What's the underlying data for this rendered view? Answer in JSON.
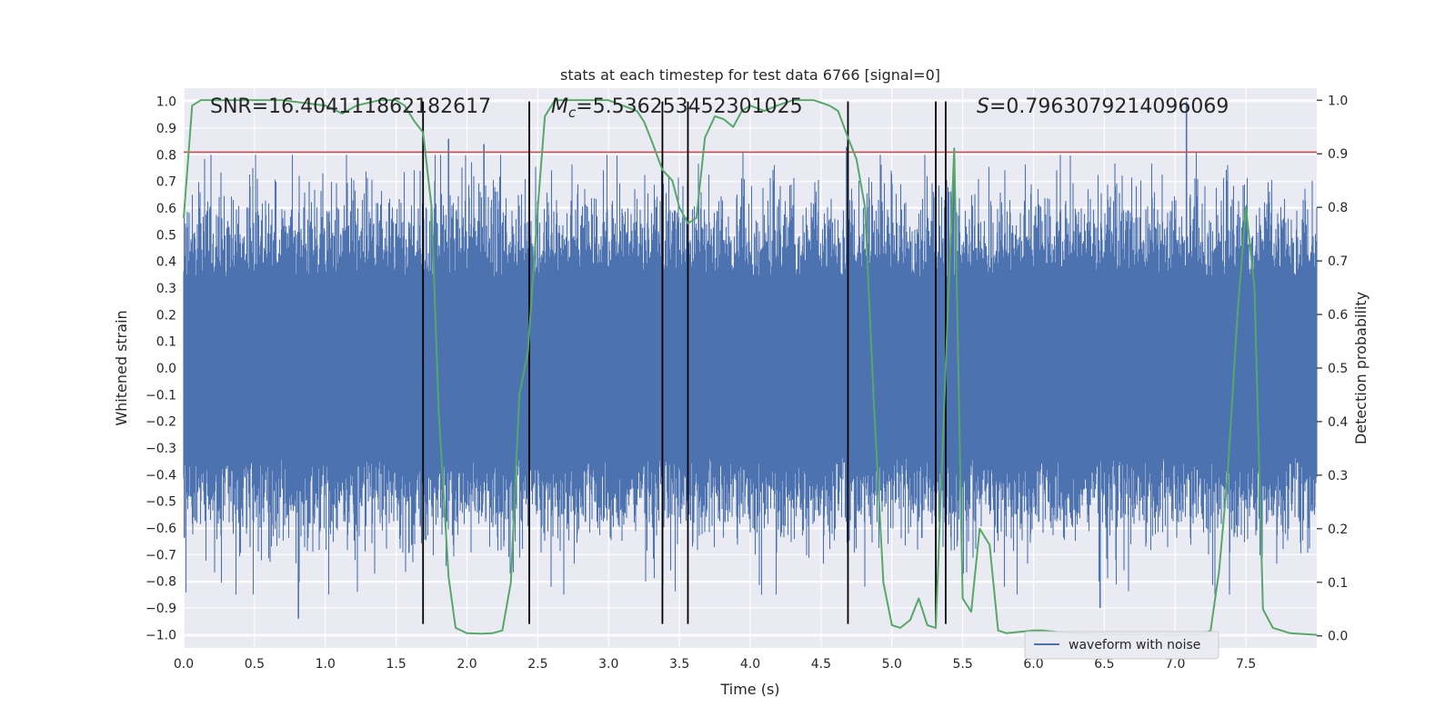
{
  "chart_data": {
    "type": "line",
    "title": "stats at each timestep for test data 6766 [signal=0]",
    "xlabel": "Time (s)",
    "ylabel": "Whitened strain",
    "y2label": "Detection probability",
    "xlim": [
      0.0,
      8.0
    ],
    "ylim": [
      -1.05,
      1.05
    ],
    "y2lim": [
      -0.0225,
      1.0225
    ],
    "x_ticks": [
      "0.0",
      "0.5",
      "1.0",
      "1.5",
      "2.0",
      "2.5",
      "3.0",
      "3.5",
      "4.0",
      "4.5",
      "5.0",
      "5.5",
      "6.0",
      "6.5",
      "7.0",
      "7.5"
    ],
    "y_ticks": [
      "1.0",
      "0.9",
      "0.8",
      "0.7",
      "0.6",
      "0.5",
      "0.4",
      "0.3",
      "0.2",
      "0.1",
      "0.0",
      "−0.1",
      "−0.2",
      "−0.3",
      "−0.4",
      "−0.5",
      "−0.6",
      "−0.7",
      "−0.8",
      "−0.9",
      "−1.0"
    ],
    "y2_ticks": [
      "1.0",
      "0.9",
      "0.8",
      "0.7",
      "0.6",
      "0.5",
      "0.4",
      "0.3",
      "0.2",
      "0.1",
      "0.0"
    ],
    "annotations": {
      "snr": "SNR=16.404111862182617",
      "mc_symbol": "M",
      "mc_sub": "c",
      "mc_value": "=5.536253452301025",
      "s_symbol": "S",
      "s_value": "=0.7963079214096069"
    },
    "legend": {
      "label": "waveform with noise",
      "placement": "lower-right"
    },
    "grid": true,
    "threshold_line": {
      "y": 0.81,
      "color": "#c44e52"
    },
    "vertical_lines": [
      1.69,
      2.44,
      3.38,
      3.56,
      4.69,
      5.31,
      5.38
    ],
    "series": [
      {
        "name": "waveform with noise",
        "axis": "left",
        "color": "#4c72b0",
        "render": "dense-noise",
        "envelope_typical": 0.45,
        "extreme_peaks": [
          {
            "x": 0.81,
            "y": -0.94
          },
          {
            "x": 1.87,
            "y": 0.86
          },
          {
            "x": 2.12,
            "y": 0.84
          },
          {
            "x": 4.68,
            "y": 0.83
          },
          {
            "x": 6.47,
            "y": -0.9
          },
          {
            "x": 7.08,
            "y": 1.0
          }
        ]
      },
      {
        "name": "detection probability",
        "axis": "right",
        "color": "#55a868",
        "x": [
          0.0,
          0.06,
          0.12,
          0.4,
          0.7,
          1.0,
          1.12,
          1.22,
          1.38,
          1.5,
          1.56,
          1.63,
          1.69,
          1.75,
          1.8,
          1.87,
          1.92,
          2.0,
          2.1,
          2.18,
          2.25,
          2.31,
          2.37,
          2.43,
          2.5,
          2.55,
          2.62,
          2.75,
          3.0,
          3.1,
          3.2,
          3.25,
          3.31,
          3.38,
          3.45,
          3.5,
          3.56,
          3.62,
          3.68,
          3.75,
          3.81,
          3.88,
          3.94,
          4.0,
          4.1,
          4.19,
          4.3,
          4.45,
          4.56,
          4.62,
          4.69,
          4.75,
          4.81,
          4.87,
          4.94,
          5.0,
          5.06,
          5.13,
          5.19,
          5.25,
          5.31,
          5.38,
          5.44,
          5.5,
          5.56,
          5.62,
          5.69,
          5.75,
          5.81,
          6.0,
          6.06,
          6.25,
          6.5,
          6.75,
          7.0,
          7.19,
          7.25,
          7.31,
          7.37,
          7.44,
          7.5,
          7.56,
          7.62,
          7.69,
          7.75,
          7.81,
          8.0
        ],
        "y": [
          0.78,
          0.99,
          1.0,
          1.0,
          1.0,
          0.99,
          0.975,
          0.99,
          1.0,
          1.0,
          0.99,
          0.96,
          0.94,
          0.8,
          0.42,
          0.11,
          0.015,
          0.005,
          0.004,
          0.005,
          0.01,
          0.1,
          0.45,
          0.53,
          0.8,
          0.97,
          1.0,
          1.0,
          1.0,
          0.99,
          0.98,
          0.96,
          0.92,
          0.87,
          0.85,
          0.8,
          0.77,
          0.78,
          0.93,
          0.97,
          0.965,
          0.95,
          0.98,
          0.99,
          0.98,
          0.99,
          1.0,
          1.0,
          0.99,
          0.98,
          0.93,
          0.89,
          0.8,
          0.45,
          0.1,
          0.02,
          0.015,
          0.03,
          0.07,
          0.02,
          0.015,
          0.5,
          0.91,
          0.07,
          0.045,
          0.2,
          0.17,
          0.01,
          0.005,
          0.01,
          0.01,
          0.005,
          0.003,
          0.003,
          0.002,
          0.003,
          0.01,
          0.12,
          0.3,
          0.6,
          0.8,
          0.65,
          0.05,
          0.015,
          0.01,
          0.005,
          0.002
        ]
      }
    ]
  }
}
